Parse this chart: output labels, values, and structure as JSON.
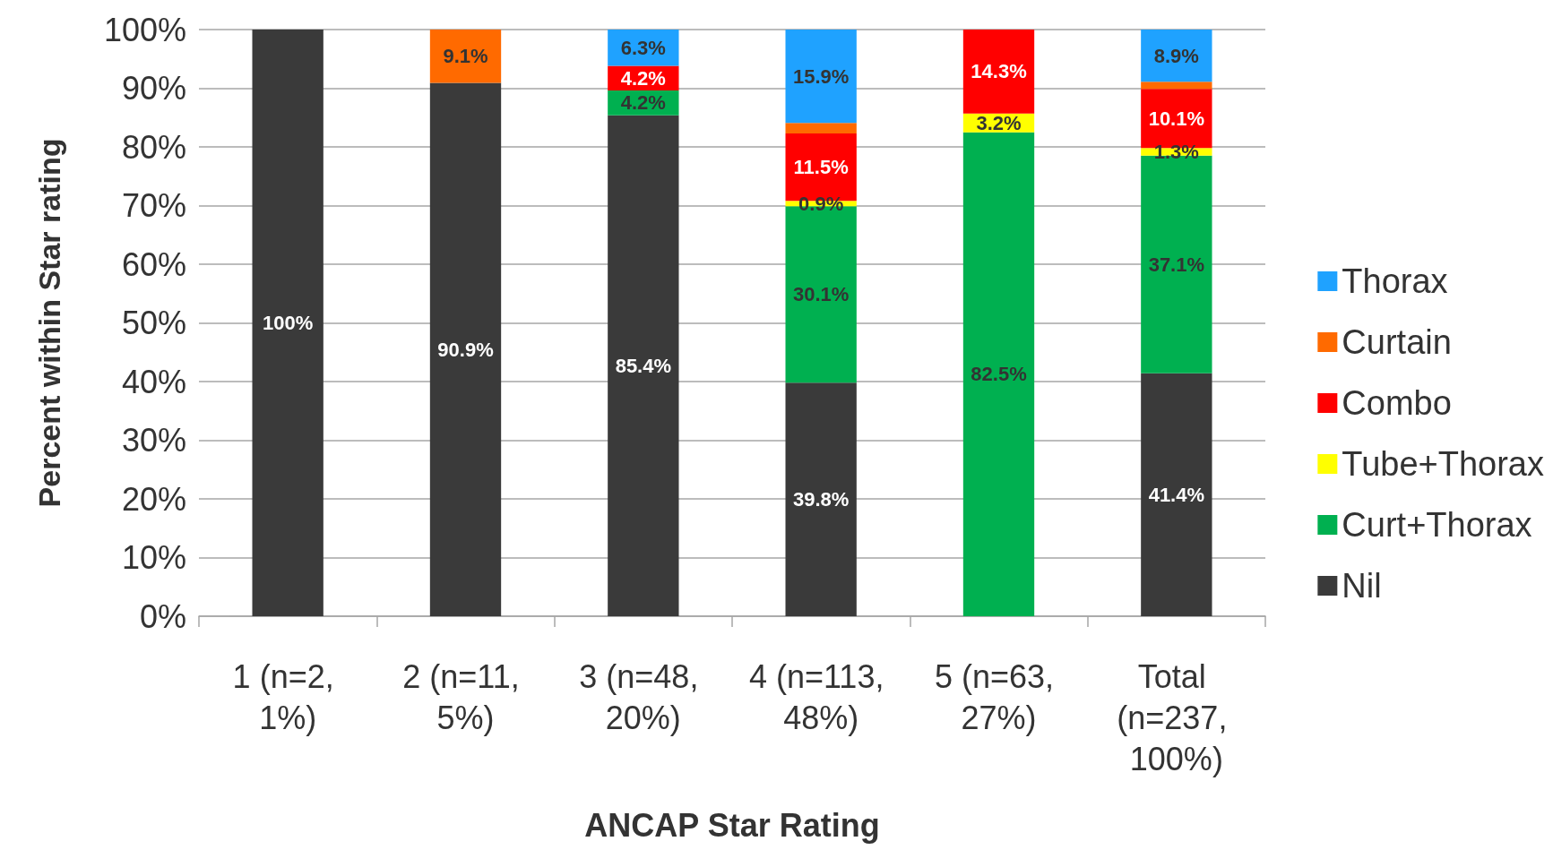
{
  "chart_data": {
    "type": "bar",
    "stacked": true,
    "xlabel": "ANCAP Star Rating",
    "ylabel": "Percent within Star rating",
    "categories": [
      "1 (n=2, 1%)",
      "2 (n=11, 5%)",
      "3 (n=48, 20%)",
      "4 (n=113, 48%)",
      "5 (n=63, 27%)",
      "Total (n=237, 100%)"
    ],
    "series": [
      {
        "name": "Nil",
        "color": "#3a3a3a",
        "values": [
          100,
          90.9,
          85.4,
          39.8,
          null,
          41.4
        ],
        "value_labels": [
          "100%",
          "90.9%",
          "85.4%",
          "39.8%",
          null,
          "41.4%"
        ]
      },
      {
        "name": "Curt+Thorax",
        "color": "#00b050",
        "values": [
          null,
          null,
          4.2,
          30.1,
          82.5,
          37.1
        ],
        "value_labels": [
          null,
          null,
          "4.2%",
          "30.1%",
          "82.5%",
          "37.1%"
        ]
      },
      {
        "name": "Tube+Thorax",
        "color": "#ffff00",
        "values": [
          null,
          null,
          null,
          0.9,
          3.2,
          1.3
        ],
        "value_labels": [
          null,
          null,
          null,
          "0.9%",
          "3.2%",
          "1.3%"
        ]
      },
      {
        "name": "Combo",
        "color": "#ff0000",
        "values": [
          null,
          null,
          4.2,
          11.5,
          14.3,
          10.1
        ],
        "value_labels": [
          null,
          null,
          "4.2%",
          "11.5%",
          "14.3%",
          "10.1%"
        ]
      },
      {
        "name": "Curtain",
        "color": "#ff6a00",
        "values": [
          null,
          9.1,
          null,
          1.8,
          null,
          1.2
        ],
        "value_labels": [
          null,
          "9.1%",
          null,
          null,
          null,
          null
        ]
      },
      {
        "name": "Thorax",
        "color": "#1fa2ff",
        "values": [
          null,
          null,
          6.3,
          15.9,
          null,
          8.9
        ],
        "value_labels": [
          null,
          null,
          "6.3%",
          "15.9%",
          null,
          "8.9%"
        ]
      }
    ],
    "ylim": [
      0,
      100
    ],
    "yticks": [
      {
        "value": 0,
        "label": "0%"
      },
      {
        "value": 10,
        "label": "10%"
      },
      {
        "value": 20,
        "label": "20%"
      },
      {
        "value": 30,
        "label": "30%"
      },
      {
        "value": 40,
        "label": "40%"
      },
      {
        "value": 50,
        "label": "50%"
      },
      {
        "value": 60,
        "label": "60%"
      },
      {
        "value": 70,
        "label": "70%"
      },
      {
        "value": 80,
        "label": "80%"
      },
      {
        "value": 90,
        "label": "90%"
      },
      {
        "value": 100,
        "label": "100%"
      }
    ],
    "grid": "y",
    "legend": "right"
  }
}
